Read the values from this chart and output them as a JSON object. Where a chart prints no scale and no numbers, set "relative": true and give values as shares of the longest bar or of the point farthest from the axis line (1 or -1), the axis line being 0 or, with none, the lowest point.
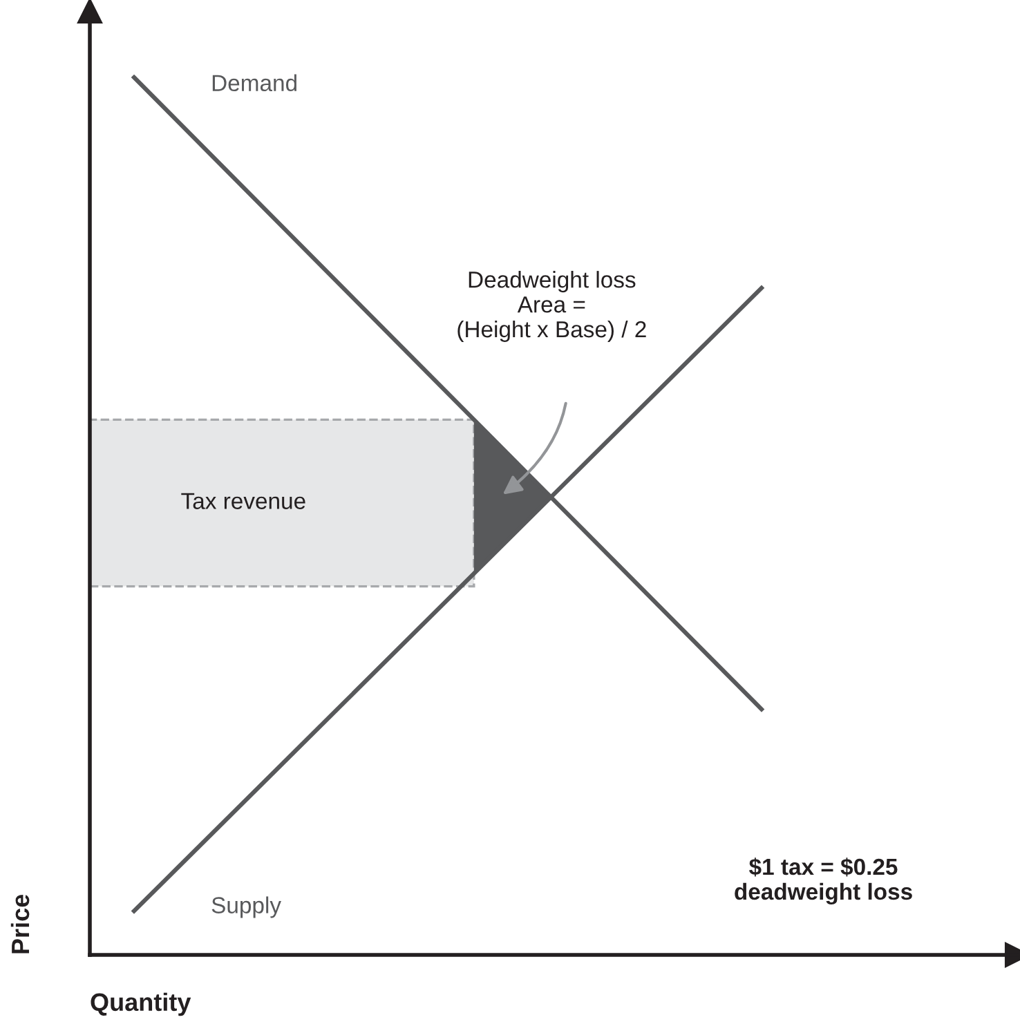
{
  "chart_data": {
    "type": "line",
    "relative": true,
    "categories": [
      null,
      null
    ],
    "xlabel": "Quantity",
    "ylabel": "Price",
    "grid": false,
    "legend": false,
    "marker": "none",
    "line_style": "solid",
    "series": [
      {
        "name": "Demand",
        "color": "#58595b",
        "values": [
          1,
          0.28
        ]
      },
      {
        "name": "Supply",
        "color": "#58595b",
        "values": [
          0.05,
          0.76
        ]
      }
    ],
    "bands": [
      {
        "axis": "y",
        "from": 0.42,
        "to": 0.61,
        "label": "Tax revenue",
        "color": "#e6e7e8"
      }
    ],
    "annotations": [
      "Deadweight loss\nArea =\n(Height x Base) / 2",
      "$1 tax = $0.25\ndeadweight loss"
    ]
  }
}
